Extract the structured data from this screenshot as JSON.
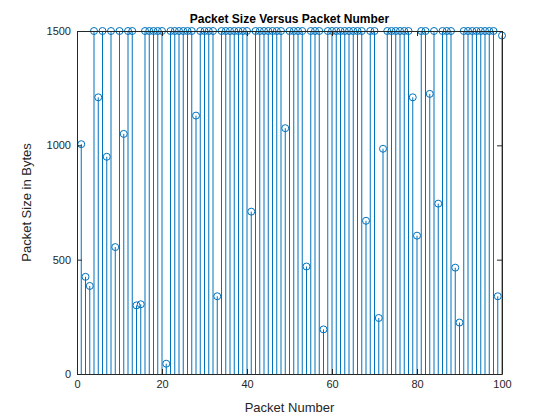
{
  "chart_data": {
    "type": "stem",
    "title": "Packet Size Versus Packet Number",
    "x_label": "Packet Number",
    "y_label": "Packet Size in Bytes",
    "x": [
      1,
      2,
      3,
      4,
      5,
      6,
      7,
      8,
      9,
      10,
      11,
      12,
      13,
      14,
      15,
      16,
      17,
      18,
      19,
      20,
      21,
      22,
      23,
      24,
      25,
      26,
      27,
      28,
      29,
      30,
      31,
      32,
      33,
      34,
      35,
      36,
      37,
      38,
      39,
      40,
      41,
      42,
      43,
      44,
      45,
      46,
      47,
      48,
      49,
      50,
      51,
      52,
      53,
      54,
      55,
      56,
      57,
      58,
      59,
      60,
      61,
      62,
      63,
      64,
      65,
      66,
      67,
      68,
      69,
      70,
      71,
      72,
      73,
      74,
      75,
      76,
      77,
      78,
      79,
      80,
      81,
      82,
      83,
      84,
      85,
      86,
      87,
      88,
      89,
      90,
      91,
      92,
      93,
      94,
      95,
      96,
      97,
      98,
      99,
      100
    ],
    "values": [
      1005,
      425,
      385,
      1500,
      1210,
      1500,
      950,
      1500,
      555,
      1500,
      1050,
      1500,
      1500,
      300,
      305,
      1500,
      1500,
      1500,
      1500,
      1500,
      45,
      1500,
      1500,
      1500,
      1500,
      1500,
      1500,
      1130,
      1500,
      1500,
      1500,
      1500,
      340,
      1500,
      1500,
      1500,
      1500,
      1500,
      1500,
      1500,
      710,
      1500,
      1500,
      1500,
      1500,
      1500,
      1500,
      1500,
      1075,
      1500,
      1500,
      1500,
      1500,
      470,
      1500,
      1500,
      1500,
      195,
      1500,
      1500,
      1500,
      1500,
      1500,
      1500,
      1500,
      1500,
      1500,
      670,
      1500,
      1500,
      245,
      985,
      1500,
      1500,
      1500,
      1500,
      1500,
      1500,
      1210,
      605,
      1500,
      1500,
      1225,
      1500,
      745,
      1500,
      1500,
      1500,
      465,
      225,
      1500,
      1500,
      1500,
      1500,
      1500,
      1500,
      1500,
      1500,
      340,
      1480
    ],
    "color": "#0072bd",
    "marker": "circle",
    "xlim": [
      0,
      100
    ],
    "xticks": [
      0,
      20,
      40,
      60,
      80,
      100
    ],
    "ylim": [
      0,
      1500
    ],
    "yticks": [
      0,
      500,
      1000,
      1500
    ],
    "grid": false
  }
}
